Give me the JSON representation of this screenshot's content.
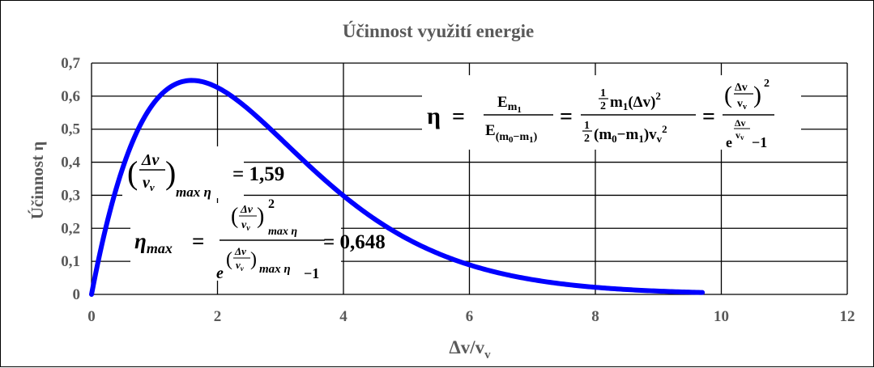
{
  "chart_data": {
    "type": "line",
    "title": "Účinnost využití energie",
    "xlabel": "Δv/v",
    "xlabel_sub": "v",
    "ylabel": "Účinnost η",
    "xlim": [
      0,
      12
    ],
    "ylim": [
      0,
      0.7
    ],
    "x_ticks": [
      "0",
      "2",
      "4",
      "6",
      "8",
      "10",
      "12"
    ],
    "y_ticks": [
      "0",
      "0,1",
      "0,2",
      "0,3",
      "0,4",
      "0,5",
      "0,6",
      "0,7"
    ],
    "grid": true,
    "series": [
      {
        "formula": "x^2/(e^x - 1)",
        "x": [
          0,
          0.1,
          0.25,
          0.5,
          0.75,
          1.0,
          1.25,
          1.5,
          1.59,
          1.75,
          2.0,
          2.25,
          2.5,
          2.75,
          3.0,
          3.25,
          3.5,
          3.75,
          4.0,
          4.5,
          5.0,
          5.5,
          6.0,
          6.5,
          7.0,
          7.5,
          8.0,
          8.5,
          9.0,
          9.7
        ],
        "y": [
          0,
          0.095,
          0.221,
          0.385,
          0.503,
          0.582,
          0.63,
          0.648,
          0.648,
          0.641,
          0.626,
          0.597,
          0.551,
          0.503,
          0.473,
          0.422,
          0.378,
          0.331,
          0.298,
          0.229,
          0.17,
          0.124,
          0.09,
          0.064,
          0.045,
          0.032,
          0.022,
          0.015,
          0.01,
          0.006
        ],
        "color": "#0000ff"
      }
    ],
    "annotations": {
      "main_formula": {
        "eta": "η",
        "eq": "=",
        "f1_num": "E",
        "f1_num_sub": "m",
        "f1_num_subsub": "1",
        "f1_den": "E",
        "f1_den_sub": "(m",
        "f1_den_sub0": "0",
        "f1_den_sub_mid": "−m",
        "f1_den_sub1": "1",
        "f1_den_sub_end": ")",
        "f2_num": "m",
        "f2_num_sub": "1",
        "f2_num_tail": "(Δv)",
        "f2_num_exp": "2",
        "half_num": "1",
        "half_den": "2",
        "f2_den_a": "(m",
        "f2_den_a_sub": "0",
        "f2_den_b": "−m",
        "f2_den_b_sub": "1",
        "f2_den_c": ")v",
        "f2_den_c_sub": "v",
        "f2_den_exp": "2",
        "f3_inner_num": "Δv",
        "f3_inner_den": "v",
        "f3_inner_den_sub": "v",
        "f3_exp": "2",
        "f3_den_base": "e",
        "f3_den_exp_num": "Δv",
        "f3_den_exp_den": "v",
        "f3_den_exp_den_sub": "v",
        "f3_den_tail": "−1"
      },
      "ratio_formula": {
        "num": "Δv",
        "den": "v",
        "den_sub": "v",
        "sub": "max η",
        "value": "= 1,59"
      },
      "eta_max_formula": {
        "lhs": "η",
        "lhs_sub": "max",
        "eq": "=",
        "num": "Δv",
        "den": "v",
        "den_sub": "v",
        "num_sub": "max η",
        "num_exp": "2",
        "e": "e",
        "e_sub": "max η",
        "e_tail": "−1",
        "value": "= 0,648"
      }
    }
  }
}
